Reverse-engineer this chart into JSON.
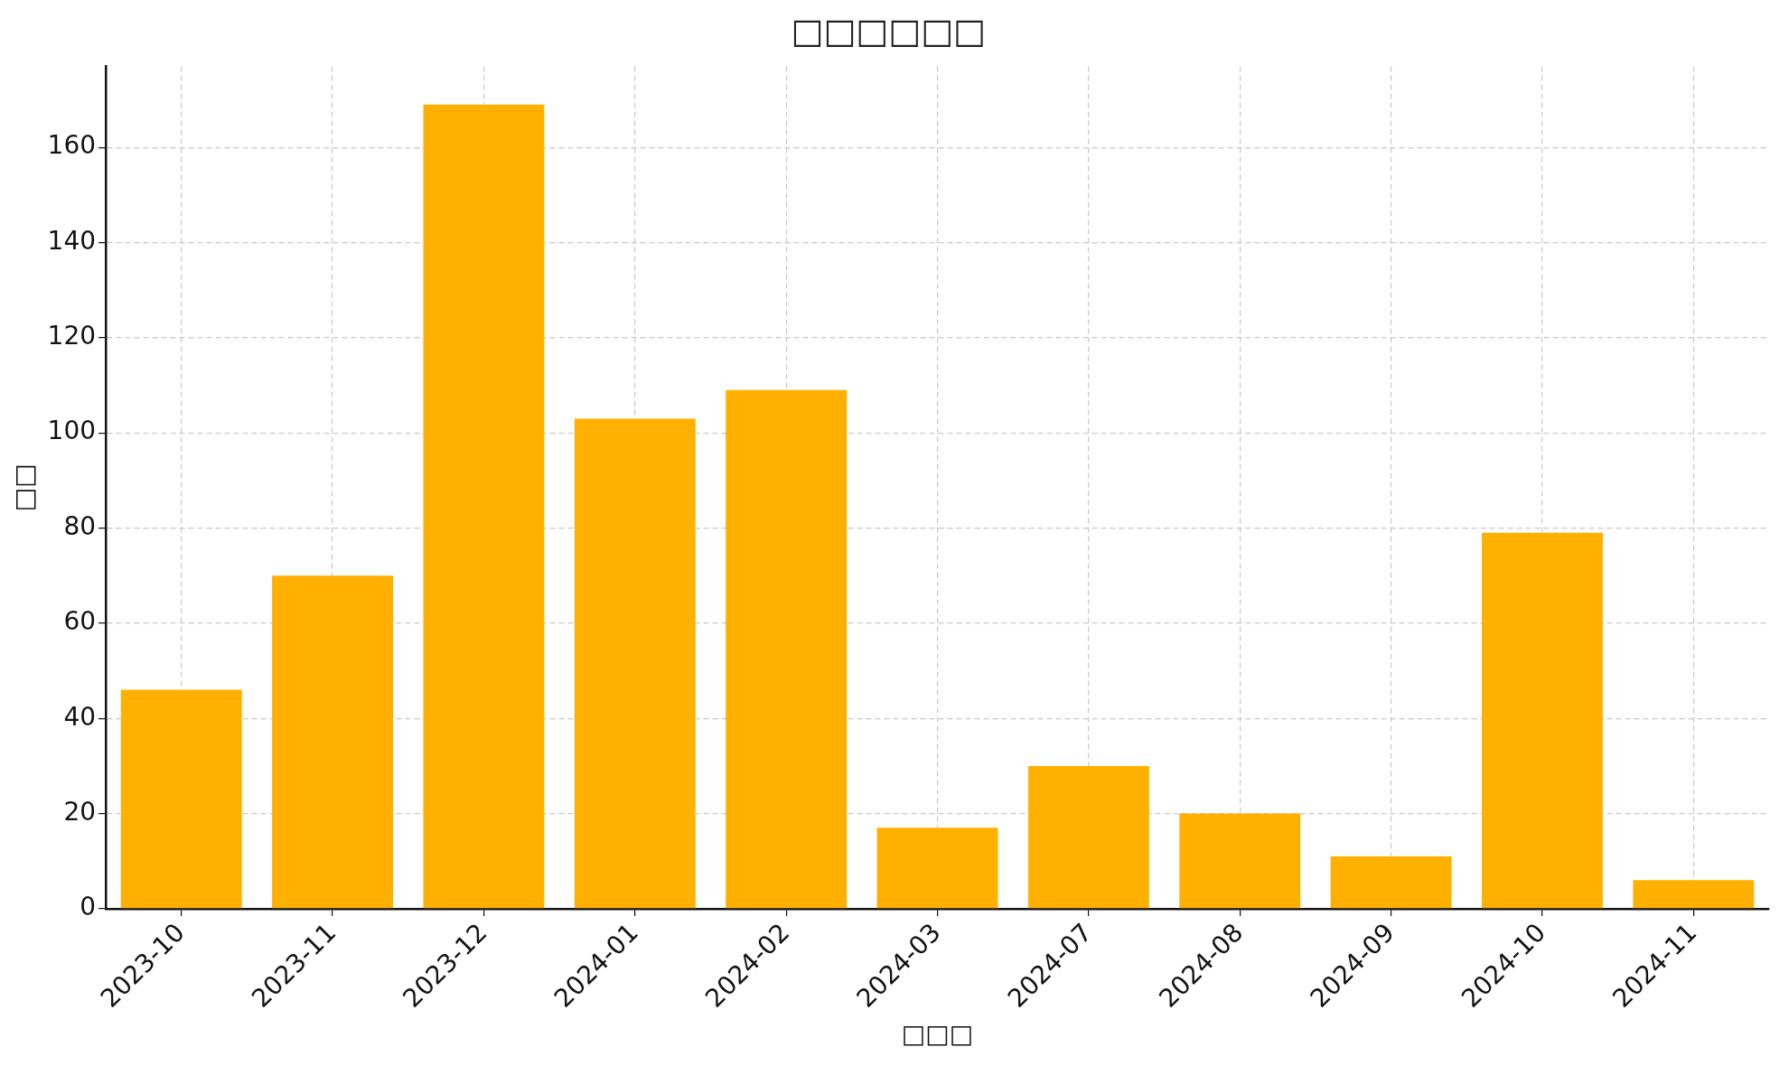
{
  "chart_data": {
    "type": "bar",
    "title": "□□□□□□",
    "xlabel": "□□□",
    "ylabel": "□□",
    "categories": [
      "2023-10",
      "2023-11",
      "2023-12",
      "2024-01",
      "2024-02",
      "2024-03",
      "2024-07",
      "2024-08",
      "2024-09",
      "2024-10",
      "2024-11"
    ],
    "values": [
      46,
      70,
      169,
      103,
      109,
      17,
      30,
      20,
      11,
      79,
      6
    ],
    "color": "#ffb000",
    "ylim": [
      0,
      177
    ],
    "yticks": [
      0,
      20,
      40,
      60,
      80,
      100,
      120,
      140,
      160
    ],
    "grid": true
  }
}
